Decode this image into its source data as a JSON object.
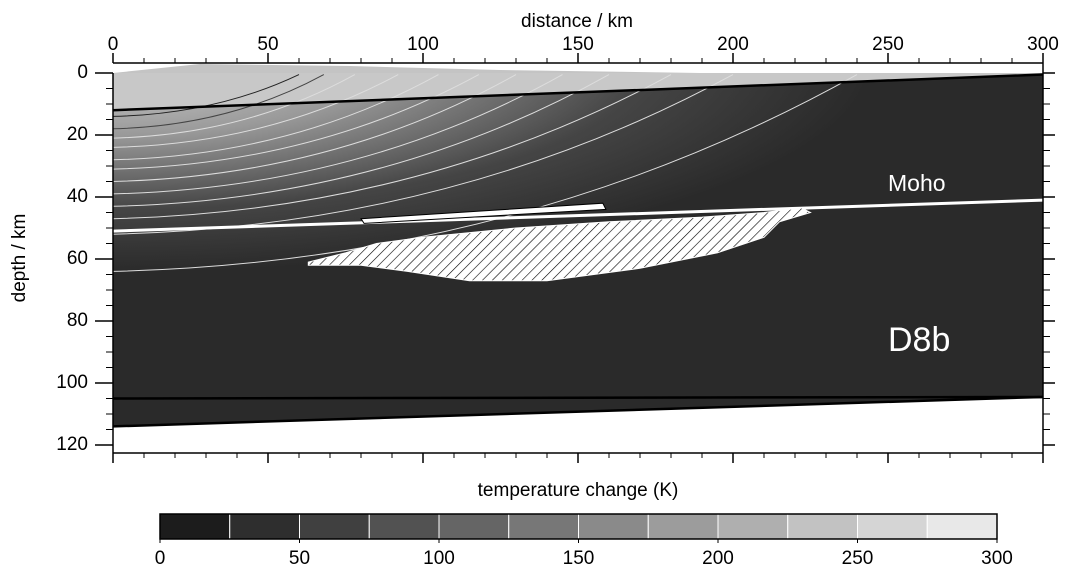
{
  "chart_data": {
    "type": "section",
    "xlabel": "distance / km",
    "ylabel": "depth / km",
    "xlim": [
      0,
      300
    ],
    "xticks": [
      0,
      50,
      100,
      150,
      200,
      250,
      300
    ],
    "ylim": [
      0,
      120
    ],
    "yticks": [
      0,
      20,
      40,
      60,
      80,
      100,
      120
    ],
    "y_inverted": true,
    "annotations": [
      "Moho",
      "D8b"
    ],
    "boundaries": [
      {
        "color": "#000000",
        "x": [
          0,
          300
        ],
        "y": [
          12,
          0.5
        ]
      },
      {
        "color": "#ffffff",
        "x": [
          0,
          300
        ],
        "y": [
          51,
          41
        ]
      },
      {
        "color": "#000000",
        "x": [
          0,
          300
        ],
        "y": [
          105,
          104.5
        ]
      },
      {
        "color": "#000000",
        "x": [
          0,
          300
        ],
        "y": [
          114,
          104.5
        ]
      }
    ],
    "melt_region": {
      "x": [
        63,
        75,
        85,
        100,
        130,
        160,
        190,
        210,
        222,
        225,
        215,
        210,
        195,
        170,
        140,
        115,
        95,
        80,
        63
      ],
      "y": [
        61,
        58,
        55,
        53,
        50,
        48,
        46.5,
        45,
        43.5,
        45,
        48,
        53,
        58,
        63,
        67,
        67,
        64,
        62,
        62
      ]
    },
    "sill": {
      "x": [
        80,
        158,
        159,
        81
      ],
      "y": [
        47,
        42,
        44,
        48.5
      ]
    },
    "colorbar": {
      "label": "temperature change (K)",
      "levels": [
        0,
        25,
        50,
        75,
        100,
        125,
        150,
        175,
        200,
        225,
        250,
        275,
        300
      ],
      "colors": [
        "#1c1c1c",
        "#2e2e2e",
        "#404040",
        "#525252",
        "#656565",
        "#777777",
        "#8a8a8a",
        "#9c9c9c",
        "#afafaf",
        "#c2c2c2",
        "#d5d5d5",
        "#e8e8e8"
      ],
      "ticks": [
        0,
        50,
        100,
        150,
        200,
        250,
        300
      ]
    }
  }
}
